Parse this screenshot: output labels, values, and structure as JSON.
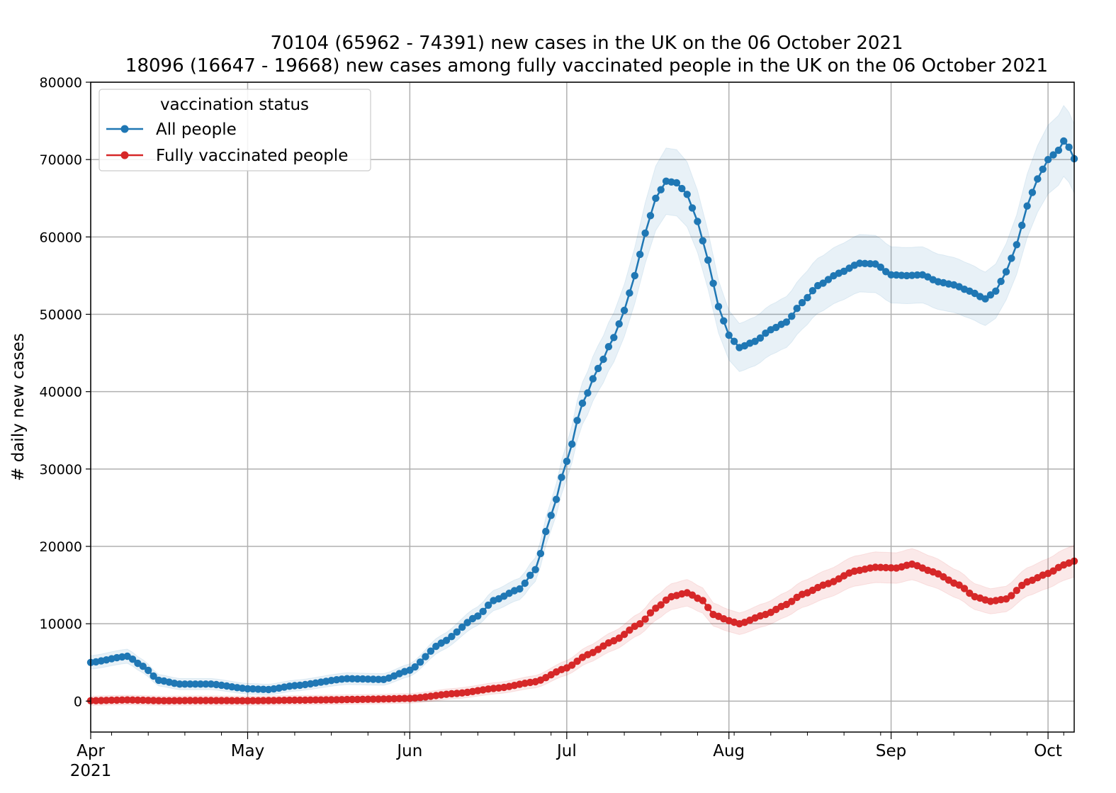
{
  "chart_data": {
    "type": "line",
    "title_lines": [
      "70104 (65962 - 74391) new cases in the UK on the 06 October 2021",
      "18096 (16647 - 19668) new cases among fully vaccinated people in the UK on the 06 October 2021"
    ],
    "ylabel": "# daily new cases",
    "xlabel": "",
    "x_start": "2021-04-01",
    "x_end": "2021-10-06",
    "ylim": [
      -4000,
      80000
    ],
    "yticks": [
      0,
      10000,
      20000,
      30000,
      40000,
      50000,
      60000,
      70000,
      80000
    ],
    "ytick_labels": [
      "0",
      "10000",
      "20000",
      "30000",
      "40000",
      "50000",
      "60000",
      "70000",
      "80000"
    ],
    "x_major_ticks": [
      {
        "date": "2021-04-01",
        "label": "Apr",
        "sublabel": "2021"
      },
      {
        "date": "2021-05-01",
        "label": "May",
        "sublabel": ""
      },
      {
        "date": "2021-06-01",
        "label": "Jun",
        "sublabel": ""
      },
      {
        "date": "2021-07-01",
        "label": "Jul",
        "sublabel": ""
      },
      {
        "date": "2021-08-01",
        "label": "Aug",
        "sublabel": ""
      },
      {
        "date": "2021-09-01",
        "label": "Sep",
        "sublabel": ""
      },
      {
        "date": "2021-10-01",
        "label": "Oct",
        "sublabel": ""
      }
    ],
    "grid": true,
    "legend": {
      "title": "vaccination status",
      "placement": "upper-left"
    },
    "series": [
      {
        "name": "All people",
        "color": "#1f77b4",
        "band_color": "#1f77b4",
        "points": [
          [
            "2021-04-01",
            5000
          ],
          [
            "2021-04-08",
            5800
          ],
          [
            "2021-04-11",
            4500
          ],
          [
            "2021-04-14",
            2700
          ],
          [
            "2021-04-18",
            2200
          ],
          [
            "2021-04-24",
            2200
          ],
          [
            "2021-05-01",
            1600
          ],
          [
            "2021-05-05",
            1500
          ],
          [
            "2021-05-10",
            2000
          ],
          [
            "2021-05-20",
            2900
          ],
          [
            "2021-05-27",
            2800
          ],
          [
            "2021-06-01",
            4000
          ],
          [
            "2021-06-07",
            7500
          ],
          [
            "2021-06-14",
            11000
          ],
          [
            "2021-06-17",
            13000
          ],
          [
            "2021-06-22",
            14500
          ],
          [
            "2021-06-25",
            17000
          ],
          [
            "2021-06-28",
            24000
          ],
          [
            "2021-07-01",
            31000
          ],
          [
            "2021-07-04",
            38500
          ],
          [
            "2021-07-07",
            43000
          ],
          [
            "2021-07-10",
            47000
          ],
          [
            "2021-07-12",
            50500
          ],
          [
            "2021-07-14",
            55000
          ],
          [
            "2021-07-16",
            60500
          ],
          [
            "2021-07-18",
            65000
          ],
          [
            "2021-07-20",
            67200
          ],
          [
            "2021-07-22",
            67000
          ],
          [
            "2021-07-24",
            65500
          ],
          [
            "2021-07-26",
            62000
          ],
          [
            "2021-07-28",
            57000
          ],
          [
            "2021-07-30",
            51000
          ],
          [
            "2021-08-01",
            47300
          ],
          [
            "2021-08-03",
            45700
          ],
          [
            "2021-08-06",
            46500
          ],
          [
            "2021-08-09",
            48000
          ],
          [
            "2021-08-12",
            49000
          ],
          [
            "2021-08-15",
            51500
          ],
          [
            "2021-08-18",
            53700
          ],
          [
            "2021-08-22",
            55300
          ],
          [
            "2021-08-26",
            56600
          ],
          [
            "2021-08-29",
            56500
          ],
          [
            "2021-09-01",
            55100
          ],
          [
            "2021-09-04",
            55000
          ],
          [
            "2021-09-07",
            55100
          ],
          [
            "2021-09-10",
            54200
          ],
          [
            "2021-09-13",
            53800
          ],
          [
            "2021-09-16",
            53000
          ],
          [
            "2021-09-19",
            52000
          ],
          [
            "2021-09-21",
            53000
          ],
          [
            "2021-09-23",
            55500
          ],
          [
            "2021-09-25",
            59000
          ],
          [
            "2021-09-27",
            64000
          ],
          [
            "2021-09-29",
            67500
          ],
          [
            "2021-10-01",
            70000
          ],
          [
            "2021-10-03",
            71200
          ],
          [
            "2021-10-04",
            72400
          ],
          [
            "2021-10-05",
            71600
          ],
          [
            "2021-10-06",
            70104
          ]
        ],
        "band_half_width_fraction": 0.055
      },
      {
        "name": "Fully vaccinated people",
        "color": "#d62728",
        "band_color": "#d62728",
        "points": [
          [
            "2021-04-01",
            50
          ],
          [
            "2021-04-08",
            150
          ],
          [
            "2021-04-15",
            50
          ],
          [
            "2021-04-22",
            80
          ],
          [
            "2021-05-01",
            50
          ],
          [
            "2021-05-15",
            150
          ],
          [
            "2021-05-25",
            250
          ],
          [
            "2021-06-01",
            350
          ],
          [
            "2021-06-10",
            1000
          ],
          [
            "2021-06-18",
            1700
          ],
          [
            "2021-06-25",
            2500
          ],
          [
            "2021-07-01",
            4300
          ],
          [
            "2021-07-05",
            6000
          ],
          [
            "2021-07-10",
            7800
          ],
          [
            "2021-07-15",
            10000
          ],
          [
            "2021-07-18",
            12000
          ],
          [
            "2021-07-21",
            13500
          ],
          [
            "2021-07-24",
            14000
          ],
          [
            "2021-07-27",
            13000
          ],
          [
            "2021-07-29",
            11200
          ],
          [
            "2021-08-01",
            10400
          ],
          [
            "2021-08-03",
            10000
          ],
          [
            "2021-08-08",
            11200
          ],
          [
            "2021-08-12",
            12500
          ],
          [
            "2021-08-15",
            13800
          ],
          [
            "2021-08-20",
            15200
          ],
          [
            "2021-08-25",
            16800
          ],
          [
            "2021-08-29",
            17300
          ],
          [
            "2021-09-02",
            17200
          ],
          [
            "2021-09-05",
            17700
          ],
          [
            "2021-09-09",
            16700
          ],
          [
            "2021-09-14",
            15000
          ],
          [
            "2021-09-17",
            13500
          ],
          [
            "2021-09-20",
            12900
          ],
          [
            "2021-09-23",
            13200
          ],
          [
            "2021-09-27",
            15400
          ],
          [
            "2021-10-01",
            16500
          ],
          [
            "2021-10-04",
            17600
          ],
          [
            "2021-10-06",
            18096
          ]
        ],
        "band_half_width_fraction": 0.08
      }
    ]
  }
}
